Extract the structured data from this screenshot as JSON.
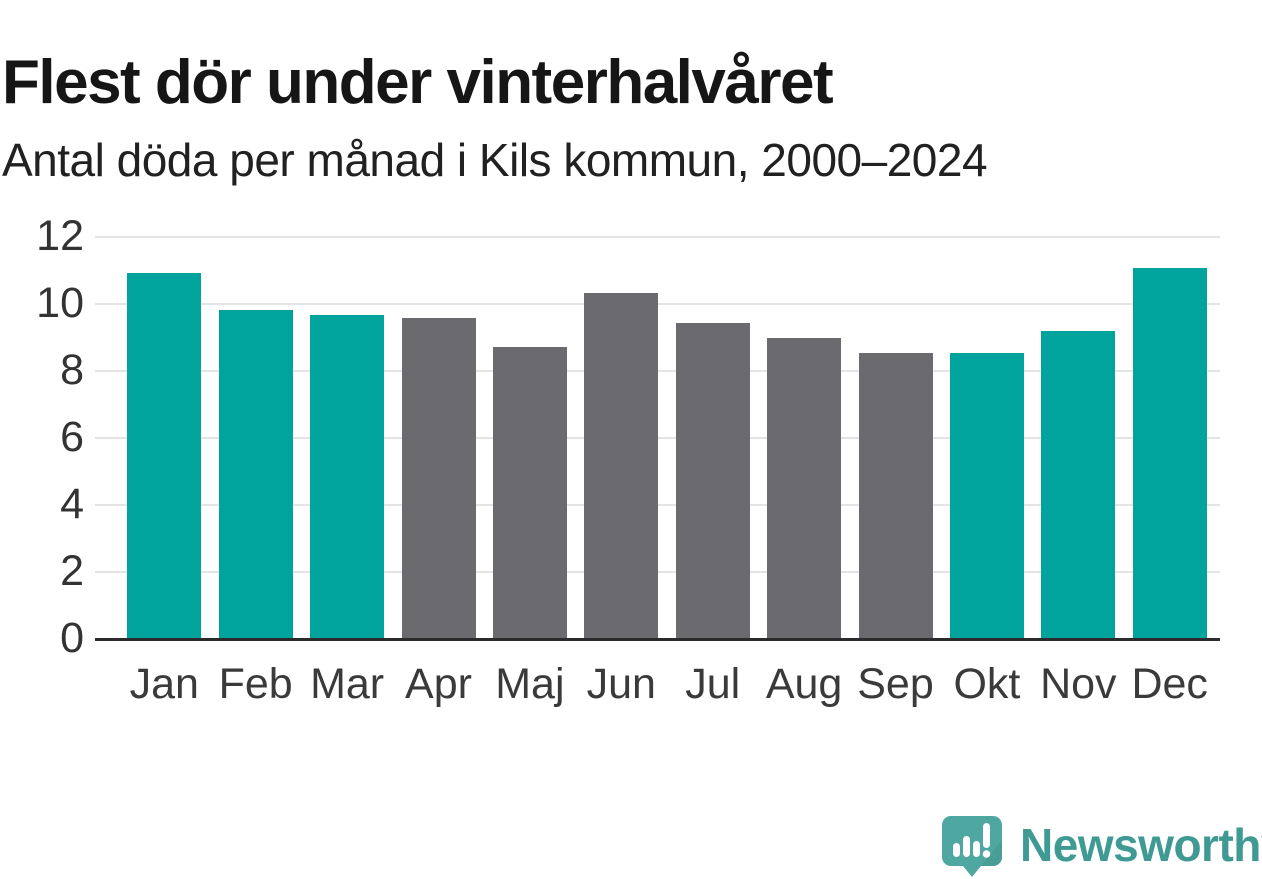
{
  "header": {
    "title": "Flest dör under vinterhalvåret",
    "subtitle": "Antal döda per månad i Kils kommun, 2000–2024"
  },
  "chart_data": {
    "type": "bar",
    "title": "Flest dör under vinterhalvåret",
    "subtitle": "Antal döda per månad i Kils kommun, 2000–2024",
    "categories": [
      "Jan",
      "Feb",
      "Mar",
      "Apr",
      "Maj",
      "Jun",
      "Jul",
      "Aug",
      "Sep",
      "Okt",
      "Nov",
      "Dec"
    ],
    "values": [
      10.9,
      9.8,
      9.65,
      9.55,
      8.7,
      10.3,
      9.4,
      8.95,
      8.5,
      8.5,
      9.15,
      11.05
    ],
    "bar_groups": [
      "winter",
      "winter",
      "winter",
      "summer",
      "summer",
      "summer",
      "summer",
      "summer",
      "summer",
      "winter",
      "winter",
      "winter"
    ],
    "colors": {
      "winter": "#00a49c",
      "summer": "#6b6b6f"
    },
    "xlabel": "",
    "ylabel": "",
    "ylim": [
      0,
      12
    ],
    "yticks": [
      0,
      2,
      4,
      6,
      8,
      10,
      12
    ],
    "grid": true,
    "legend_position": "none",
    "gridline_color": "#e4e4e4",
    "axis_line_color": "#2b2b2b",
    "tick_label_color": "#333333"
  },
  "branding": {
    "logo_text": "Newsworthy",
    "logo_icon": "newsworthy-speech-bubble-bar-chart-icon",
    "text_color": "#3f9a94",
    "bubble_color": "#4ea7a1",
    "bubble_shade_color": "#449690",
    "glyph_color": "#ffffff"
  }
}
